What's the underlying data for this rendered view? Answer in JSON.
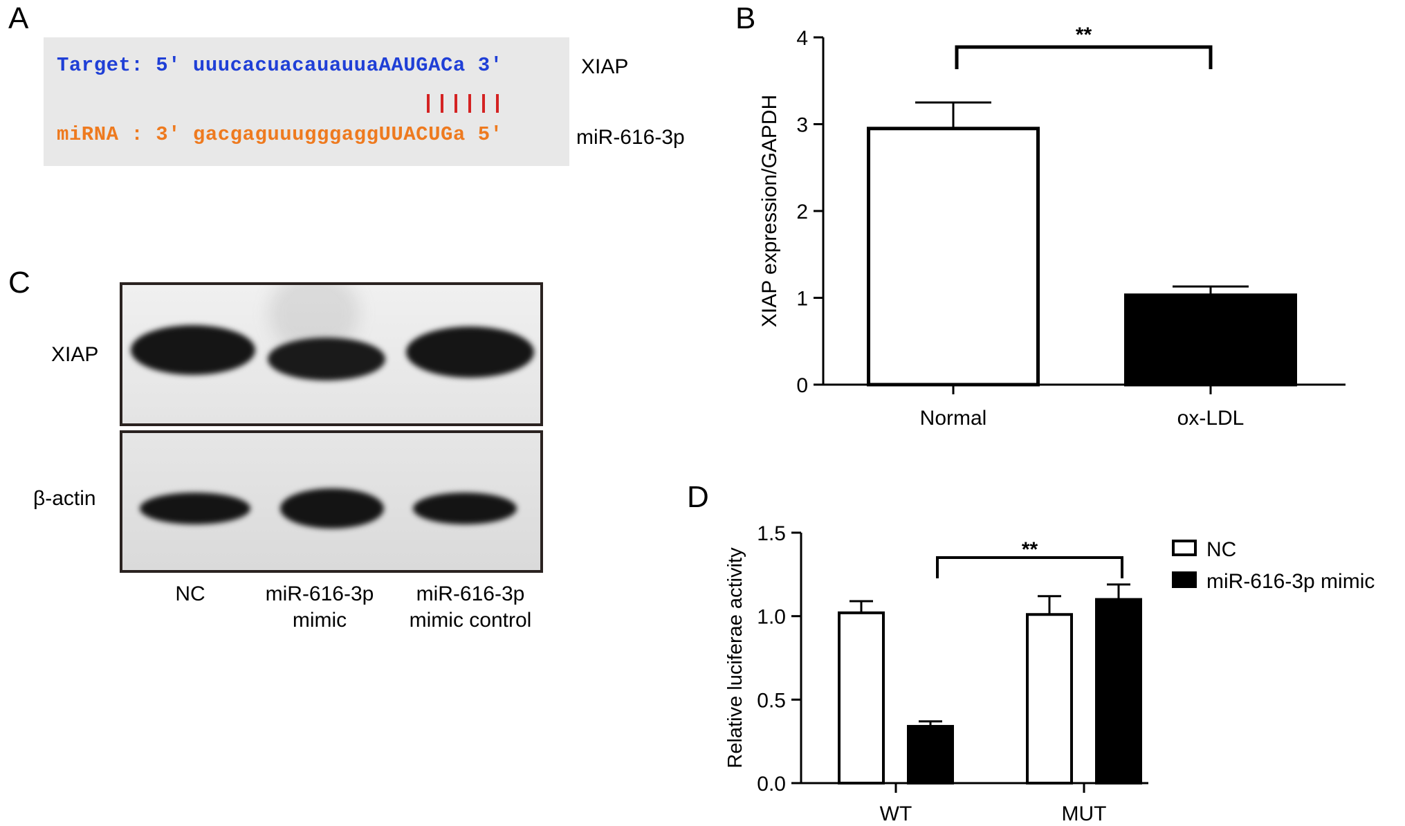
{
  "panels": {
    "A": {
      "label": "A",
      "target_line": "Target: 5' uuucacuacauauuaAAUGACa 3'",
      "mirna_line": "miRNA : 3' gacgaguuugggaggUUACUGa 5'",
      "target_gene": "XIAP",
      "mirna_name": "miR-616-3p",
      "pair_count": 6,
      "colors": {
        "target": "#1f3fd6",
        "mirna": "#ee7a1f",
        "pair_bar": "#d42222",
        "box": "#e8e8e8"
      }
    },
    "B": {
      "label": "B"
    },
    "C": {
      "label": "C",
      "row_labels": [
        "XIAP",
        "β-actin"
      ],
      "lane_labels": [
        "NC",
        "miR-616-3p\nmimic",
        "miR-616-3p\nmimic control"
      ]
    },
    "D": {
      "label": "D"
    }
  },
  "chart_data": [
    {
      "panel": "B",
      "type": "bar",
      "categories": [
        "Normal",
        "ox-LDL"
      ],
      "values": [
        2.95,
        1.03
      ],
      "errors": [
        0.3,
        0.1
      ],
      "bar_colors": [
        "#ffffff",
        "#000000"
      ],
      "ylabel": "XIAP expression/GAPDH",
      "xlabel": "",
      "ylim": [
        0,
        4
      ],
      "yticks": [
        "0",
        "1",
        "2",
        "3",
        "4"
      ],
      "significance": {
        "label": "**",
        "from": "Normal",
        "to": "ox-LDL"
      }
    },
    {
      "panel": "D",
      "type": "bar",
      "categories": [
        "WT",
        "MUT"
      ],
      "series": [
        {
          "name": "NC",
          "values": [
            1.02,
            1.01
          ],
          "errors": [
            0.07,
            0.11
          ],
          "color": "#ffffff"
        },
        {
          "name": "miR-616-3p mimic",
          "values": [
            0.34,
            1.1
          ],
          "errors": [
            0.03,
            0.09
          ],
          "color": "#000000"
        }
      ],
      "ylabel": "Relative luciferae activity",
      "xlabel": "",
      "ylim": [
        0,
        1.5
      ],
      "yticks": [
        "0.0",
        "0.5",
        "1.0",
        "1.5"
      ],
      "legend_position": "top-right",
      "significance": {
        "label": "**",
        "from": "WT mimic",
        "to": "MUT mimic"
      }
    }
  ]
}
